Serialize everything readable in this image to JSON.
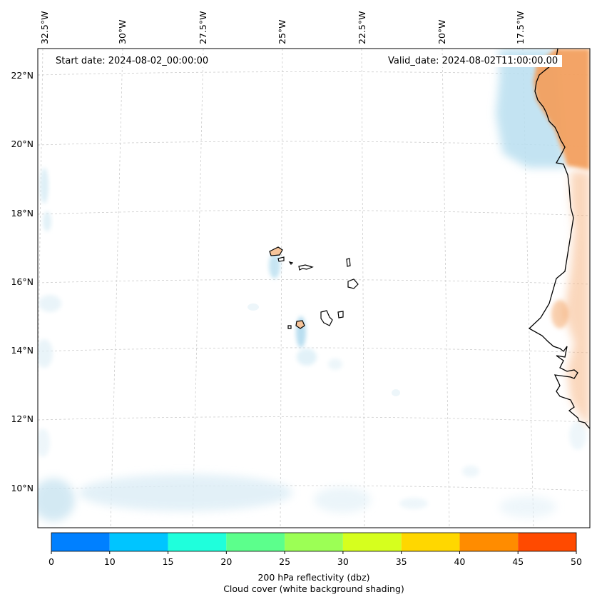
{
  "map": {
    "start_date": "Start date: 2024-08-02_00:00:00",
    "valid_date": "Valid_date: 2024-08-02T11:00:00.00",
    "lon_labels": [
      "32.5°W",
      "30°W",
      "27.5°W",
      "25°W",
      "22.5°W",
      "20°W",
      "17.5°W"
    ],
    "lat_labels": [
      "22°N",
      "20°N",
      "18°N",
      "16°N",
      "14°N",
      "12°N",
      "10°N"
    ],
    "region": [
      "Cape Verde Islands",
      "West African coast"
    ]
  },
  "colorbar": {
    "ticks": [
      "0",
      "10",
      "15",
      "20",
      "25",
      "30",
      "35",
      "40",
      "45",
      "50"
    ],
    "colors": [
      "#0080ff",
      "#00c5ff",
      "#1fffdc",
      "#5cff8c",
      "#9cff55",
      "#d6ff1e",
      "#ffd700",
      "#ff8c00",
      "#ff4a00"
    ],
    "label_line1": "200 hPa reflectivity (dbz)",
    "label_line2": "Cloud cover (white background shading)"
  },
  "colors": {
    "land_fill": "#f3a05e",
    "cloud": "#b9dff0",
    "grid": "#cccccc"
  }
}
